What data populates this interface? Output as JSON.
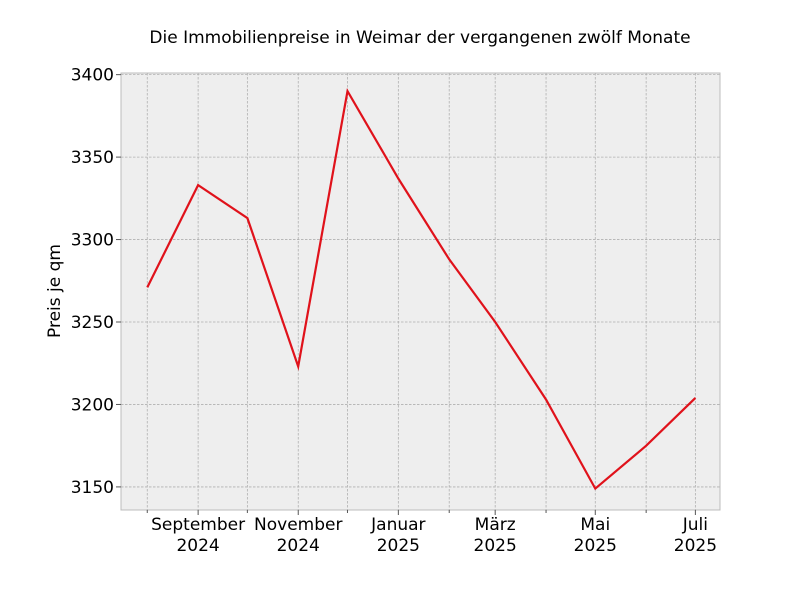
{
  "chart_data": {
    "type": "line",
    "title": "Die Immobilienpreise in Weimar der vergangenen zwölf Monate",
    "xlabel": "",
    "ylabel": "Preis je qm",
    "x": [
      "2024-08",
      "2024-09",
      "2024-10",
      "2024-11",
      "2024-12",
      "2025-01",
      "2025-02",
      "2025-03",
      "2025-04",
      "2025-05",
      "2025-06",
      "2025-07"
    ],
    "series": [
      {
        "values": [
          3271,
          3333,
          3313,
          3223,
          3390,
          3337,
          3288,
          3250,
          3203,
          3149,
          3175,
          3204
        ],
        "color": "#e0121b"
      }
    ],
    "x_ticks": [
      {
        "x": "2024-09",
        "label": [
          "September",
          "2024"
        ]
      },
      {
        "x": "2024-11",
        "label": [
          "November",
          "2024"
        ]
      },
      {
        "x": "2025-01",
        "label": [
          "Januar",
          "2025"
        ]
      },
      {
        "x": "2025-03",
        "label": [
          "März",
          "2025"
        ]
      },
      {
        "x": "2025-05",
        "label": [
          "Mai",
          "2025"
        ]
      },
      {
        "x": "2025-07",
        "label": [
          "Juli",
          "2025"
        ]
      }
    ],
    "x_minor_ticks": [
      "2024-08",
      "2024-10",
      "2024-12",
      "2025-02",
      "2025-04",
      "2025-06"
    ],
    "x_range": [
      "2024-07-16",
      "2025-07-16"
    ],
    "yticks": [
      3150,
      3200,
      3250,
      3300,
      3350,
      3400
    ],
    "ylim": [
      3136,
      3401
    ],
    "grid": true,
    "background": "#eeeeee",
    "legend": "none"
  }
}
